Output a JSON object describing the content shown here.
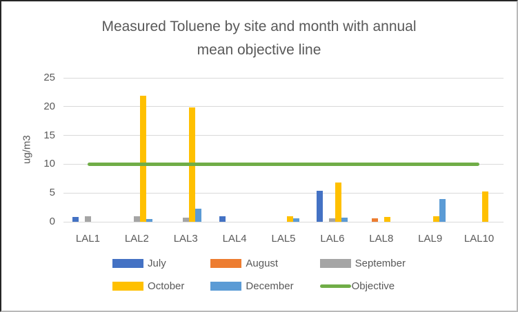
{
  "chart_data": {
    "type": "bar",
    "title": "Measured Toluene by site and month with annual mean objective line",
    "title_lines": [
      "Measured Toluene by site and month with annual",
      "mean objective line"
    ],
    "xlabel": "",
    "ylabel": "ug/m3",
    "ylim": [
      0,
      25
    ],
    "yticks": [
      0,
      5,
      10,
      15,
      20,
      25
    ],
    "grid": true,
    "legend_position": "bottom",
    "categories": [
      "LAL1",
      "LAL2",
      "LAL3",
      "LAL4",
      "LAL5",
      "LAL6",
      "LAL8",
      "LAL9",
      "LAL10"
    ],
    "series": [
      {
        "name": "July",
        "color": "#4472C4",
        "values": [
          0.8,
          0,
          0,
          0.9,
          0,
          5.4,
          0,
          0,
          0
        ]
      },
      {
        "name": "August",
        "color": "#ED7D31",
        "values": [
          0,
          0,
          0,
          0,
          0,
          0,
          0.6,
          0,
          0
        ]
      },
      {
        "name": "September",
        "color": "#A5A5A5",
        "values": [
          1.0,
          1.0,
          0.7,
          0,
          0,
          0.6,
          0,
          0,
          0
        ]
      },
      {
        "name": "October",
        "color": "#FFC000",
        "values": [
          0,
          21.9,
          19.9,
          0,
          1.0,
          6.8,
          0.8,
          0.9,
          5.3
        ]
      },
      {
        "name": "December",
        "color": "#5B9BD5",
        "values": [
          0,
          0.5,
          2.3,
          0,
          0.6,
          0.7,
          0,
          3.9,
          0
        ]
      }
    ],
    "objective_line": {
      "name": "Objective",
      "color": "#70AD47",
      "value": 10
    },
    "colors": {
      "text": "#595959",
      "gridline": "#D9D9D9"
    }
  }
}
